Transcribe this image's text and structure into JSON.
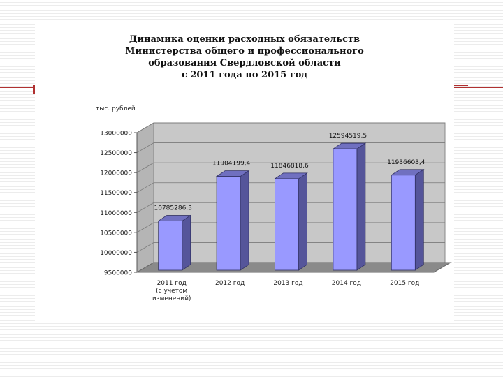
{
  "chart_data": {
    "type": "bar",
    "title_lines": [
      "Динамика оценки расходных обязательств",
      "Министерства общего и профессионального",
      "образования Свердловской области",
      "с 2011 года по 2015 год"
    ],
    "ylabel": "тыс. рублей",
    "ylim": [
      9500000,
      13000000
    ],
    "yticks": [
      9500000,
      10000000,
      10500000,
      11000000,
      11500000,
      12000000,
      12500000,
      13000000
    ],
    "categories": [
      [
        "2011 год",
        "(с учетом",
        "изменений)"
      ],
      [
        "2012 год"
      ],
      [
        "2013 год"
      ],
      [
        "2014 год"
      ],
      [
        "2015 год"
      ]
    ],
    "values": [
      10785286.3,
      11904199.4,
      11846818.6,
      12594519.5,
      11936603.4
    ],
    "value_labels": [
      "10785286,3",
      "11904199,4",
      "11846818,6",
      "12594519,5",
      "11936603,4"
    ],
    "colors": {
      "bar_front": "#9999ff",
      "bar_side": "#55559a",
      "bar_top": "#7070c0",
      "wall": "#c8c8c8",
      "floor": "#8a8a8a",
      "accent_line": "#b03030"
    }
  }
}
